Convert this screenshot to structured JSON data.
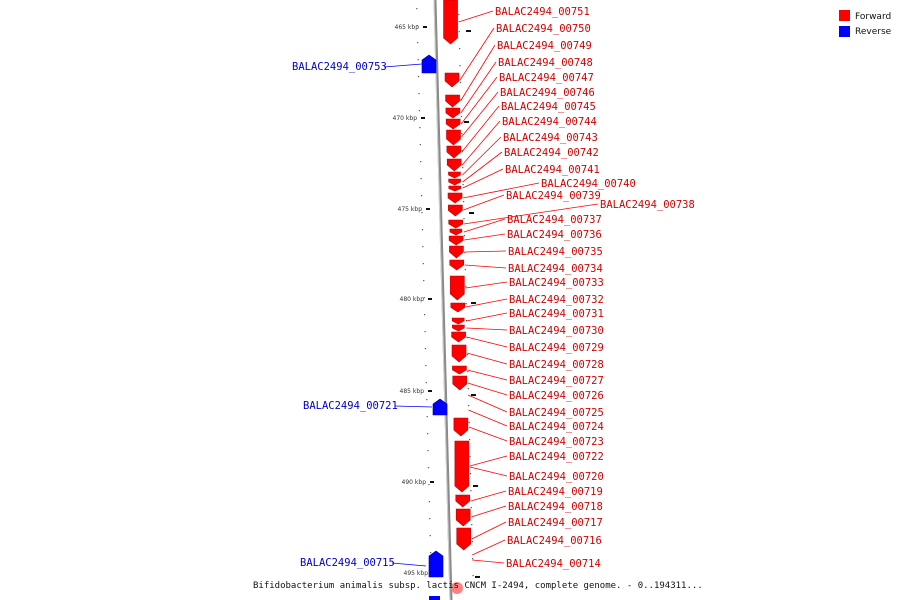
{
  "legend": {
    "items": [
      {
        "label": "Forward",
        "color": "#ff0000"
      },
      {
        "label": "Reverse",
        "color": "#0000ff"
      }
    ]
  },
  "caption": "Bifidobacterium animalis subsp. lactis CNCM I-2494, complete genome. - 0..194311...",
  "ticks": [
    "465 kbp",
    "470 kbp",
    "475 kbp",
    "480 kbp",
    "485 kbp",
    "490 kbp",
    "495 kbp"
  ],
  "genes_forward": [
    "BALAC2494_00751",
    "BALAC2494_00750",
    "BALAC2494_00749",
    "BALAC2494_00748",
    "BALAC2494_00747",
    "BALAC2494_00746",
    "BALAC2494_00745",
    "BALAC2494_00744",
    "BALAC2494_00743",
    "BALAC2494_00742",
    "BALAC2494_00741",
    "BALAC2494_00740",
    "BALAC2494_00739",
    "BALAC2494_00738",
    "BALAC2494_00737",
    "BALAC2494_00736",
    "BALAC2494_00735",
    "BALAC2494_00734",
    "BALAC2494_00733",
    "BALAC2494_00732",
    "BALAC2494_00731",
    "BALAC2494_00730",
    "BALAC2494_00729",
    "BALAC2494_00728",
    "BALAC2494_00727",
    "BALAC2494_00726",
    "BALAC2494_00725",
    "BALAC2494_00724",
    "BALAC2494_00723",
    "BALAC2494_00722",
    "BALAC2494_00720",
    "BALAC2494_00719",
    "BALAC2494_00718",
    "BALAC2494_00717",
    "BALAC2494_00716",
    "BALAC2494_00714"
  ],
  "genes_reverse": [
    "BALAC2494_00753",
    "BALAC2494_00721",
    "BALAC2494_00715"
  ]
}
